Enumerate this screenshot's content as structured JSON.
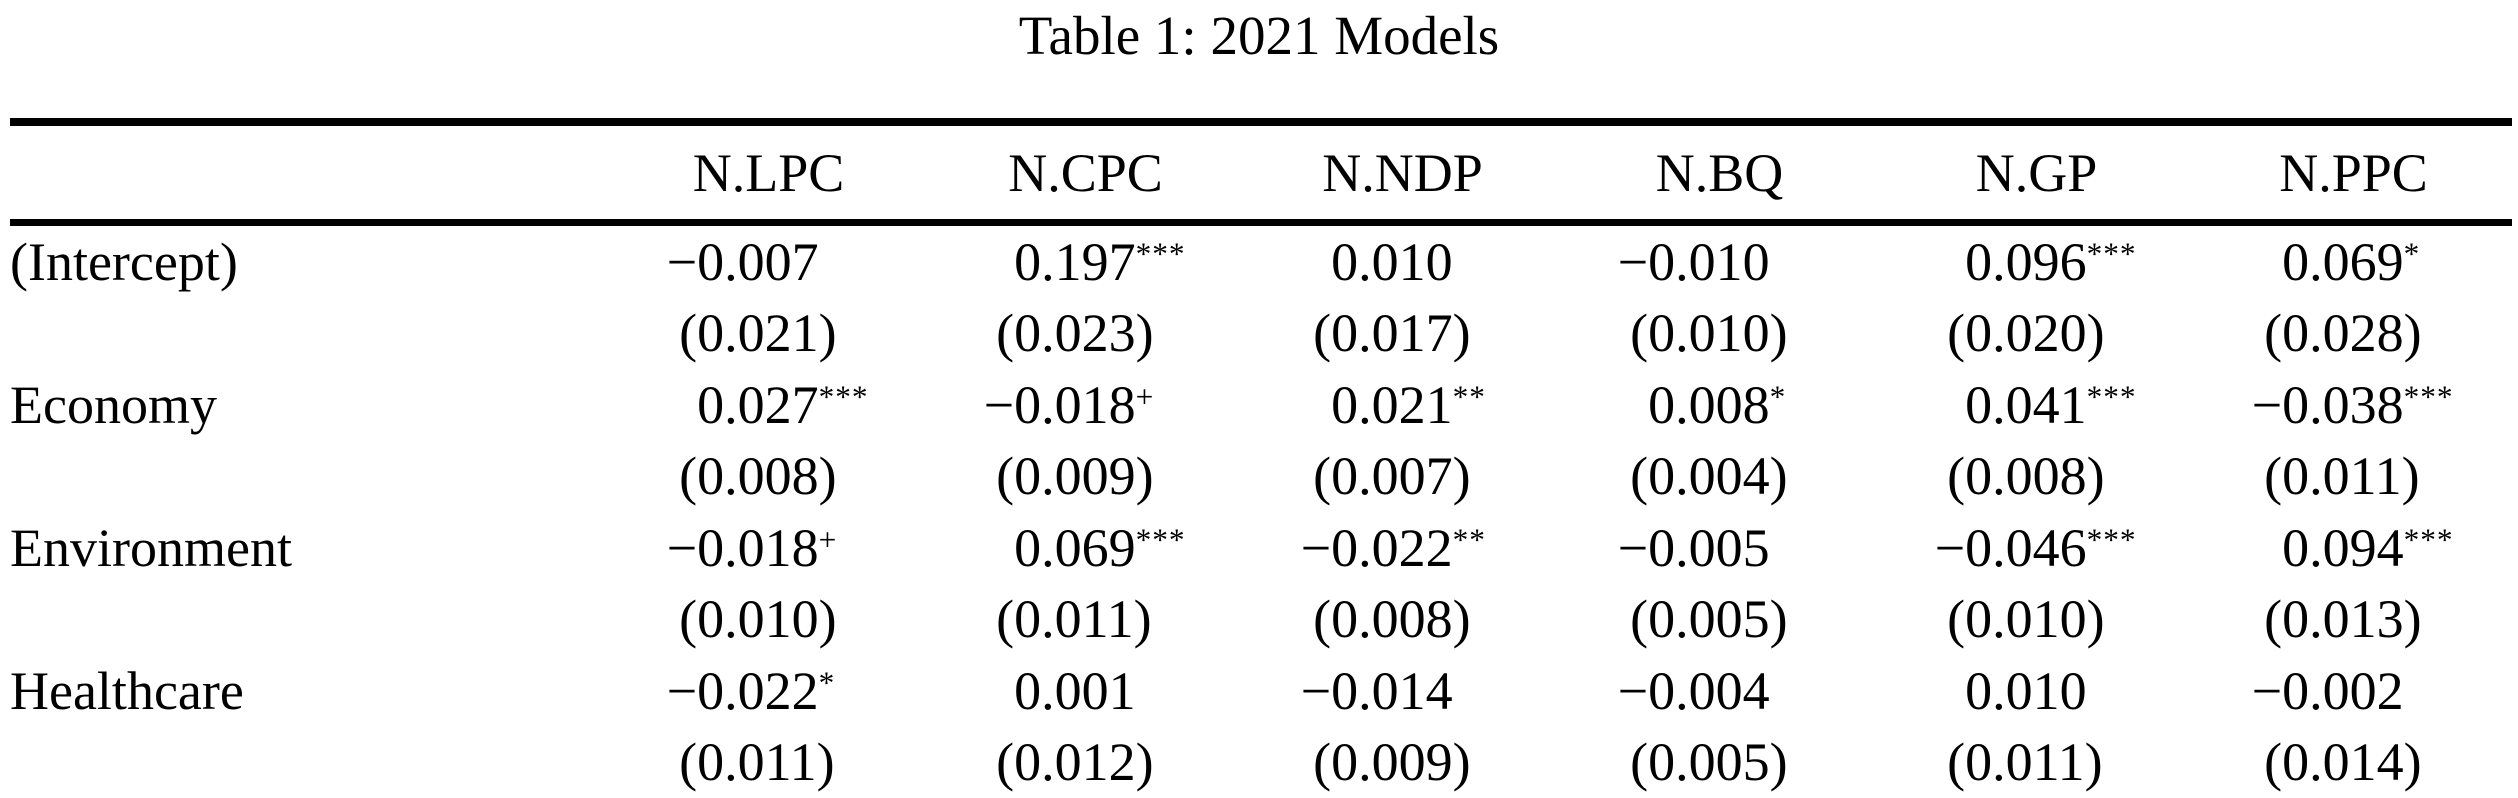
{
  "title": "Table 1: 2021 Models",
  "colors": {
    "text": "#000000",
    "background": "#ffffff",
    "rule": "#000000"
  },
  "table": {
    "columns": [
      "N.LPC",
      "N.CPC",
      "N.NDP",
      "N.BQ",
      "N.GP",
      "N.PPC"
    ],
    "rows": [
      {
        "label": "(Intercept)",
        "coefs": [
          "−0.007",
          "0.197***",
          "0.010",
          "−0.010",
          "0.096***",
          "0.069*"
        ],
        "ses": [
          "(0.021)",
          "(0.023)",
          "(0.017)",
          "(0.010)",
          "(0.020)",
          "(0.028)"
        ]
      },
      {
        "label": "Economy",
        "coefs": [
          "0.027***",
          "−0.018+",
          "0.021**",
          "0.008*",
          "0.041***",
          "−0.038***"
        ],
        "ses": [
          "(0.008)",
          "(0.009)",
          "(0.007)",
          "(0.004)",
          "(0.008)",
          "(0.011)"
        ]
      },
      {
        "label": "Environment",
        "coefs": [
          "−0.018+",
          "0.069***",
          "−0.022**",
          "−0.005",
          "−0.046***",
          "0.094***"
        ],
        "ses": [
          "(0.010)",
          "(0.011)",
          "(0.008)",
          "(0.005)",
          "(0.010)",
          "(0.013)"
        ]
      },
      {
        "label": "Healthcare",
        "coefs": [
          "−0.022*",
          "0.001",
          "−0.014",
          "−0.004",
          "0.010",
          "−0.002"
        ],
        "ses": [
          "(0.011)",
          "(0.012)",
          "(0.009)",
          "(0.005)",
          "(0.011)",
          "(0.014)"
        ]
      }
    ]
  }
}
